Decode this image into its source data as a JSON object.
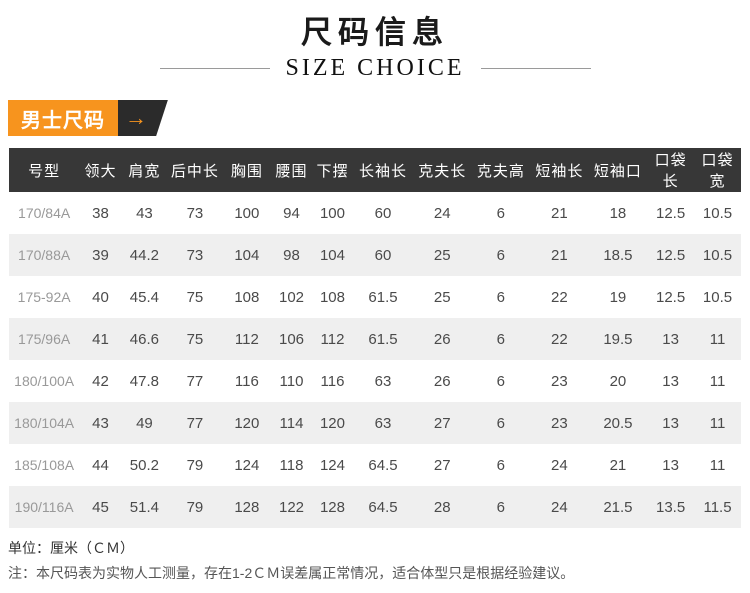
{
  "header": {
    "title": "尺码信息",
    "subtitle": "SIZE CHOICE"
  },
  "badge": {
    "label": "男士尺码",
    "arrow": "→"
  },
  "table": {
    "columns": [
      "号型",
      "领大",
      "肩宽",
      "后中长",
      "胸围",
      "腰围",
      "下摆",
      "长袖长",
      "克夫长",
      "克夫高",
      "短袖长",
      "短袖口",
      "口袋长",
      "口袋宽"
    ],
    "rows": [
      [
        "170/84A",
        "38",
        "43",
        "73",
        "100",
        "94",
        "100",
        "60",
        "24",
        "6",
        "21",
        "18",
        "12.5",
        "10.5"
      ],
      [
        "170/88A",
        "39",
        "44.2",
        "73",
        "104",
        "98",
        "104",
        "60",
        "25",
        "6",
        "21",
        "18.5",
        "12.5",
        "10.5"
      ],
      [
        "175-92A",
        "40",
        "45.4",
        "75",
        "108",
        "102",
        "108",
        "61.5",
        "25",
        "6",
        "22",
        "19",
        "12.5",
        "10.5"
      ],
      [
        "175/96A",
        "41",
        "46.6",
        "75",
        "112",
        "106",
        "112",
        "61.5",
        "26",
        "6",
        "22",
        "19.5",
        "13",
        "11"
      ],
      [
        "180/100A",
        "42",
        "47.8",
        "77",
        "116",
        "110",
        "116",
        "63",
        "26",
        "6",
        "23",
        "20",
        "13",
        "11"
      ],
      [
        "180/104A",
        "43",
        "49",
        "77",
        "120",
        "114",
        "120",
        "63",
        "27",
        "6",
        "23",
        "20.5",
        "13",
        "11"
      ],
      [
        "185/108A",
        "44",
        "50.2",
        "79",
        "124",
        "118",
        "124",
        "64.5",
        "27",
        "6",
        "24",
        "21",
        "13",
        "11"
      ],
      [
        "190/116A",
        "45",
        "51.4",
        "79",
        "128",
        "122",
        "128",
        "64.5",
        "28",
        "6",
        "24",
        "21.5",
        "13.5",
        "11.5"
      ]
    ]
  },
  "notes": {
    "unit": "单位：厘米（ＣＭ）",
    "disclaimer": "注：本尺码表为实物人工测量，存在1-2ＣＭ误差属正常情况，适合体型只是根据经验建议。"
  },
  "colors": {
    "accent_orange": "#f7941e",
    "header_dark": "#373737",
    "badge_dark": "#2b2b2b",
    "row_alt": "#efefef"
  }
}
